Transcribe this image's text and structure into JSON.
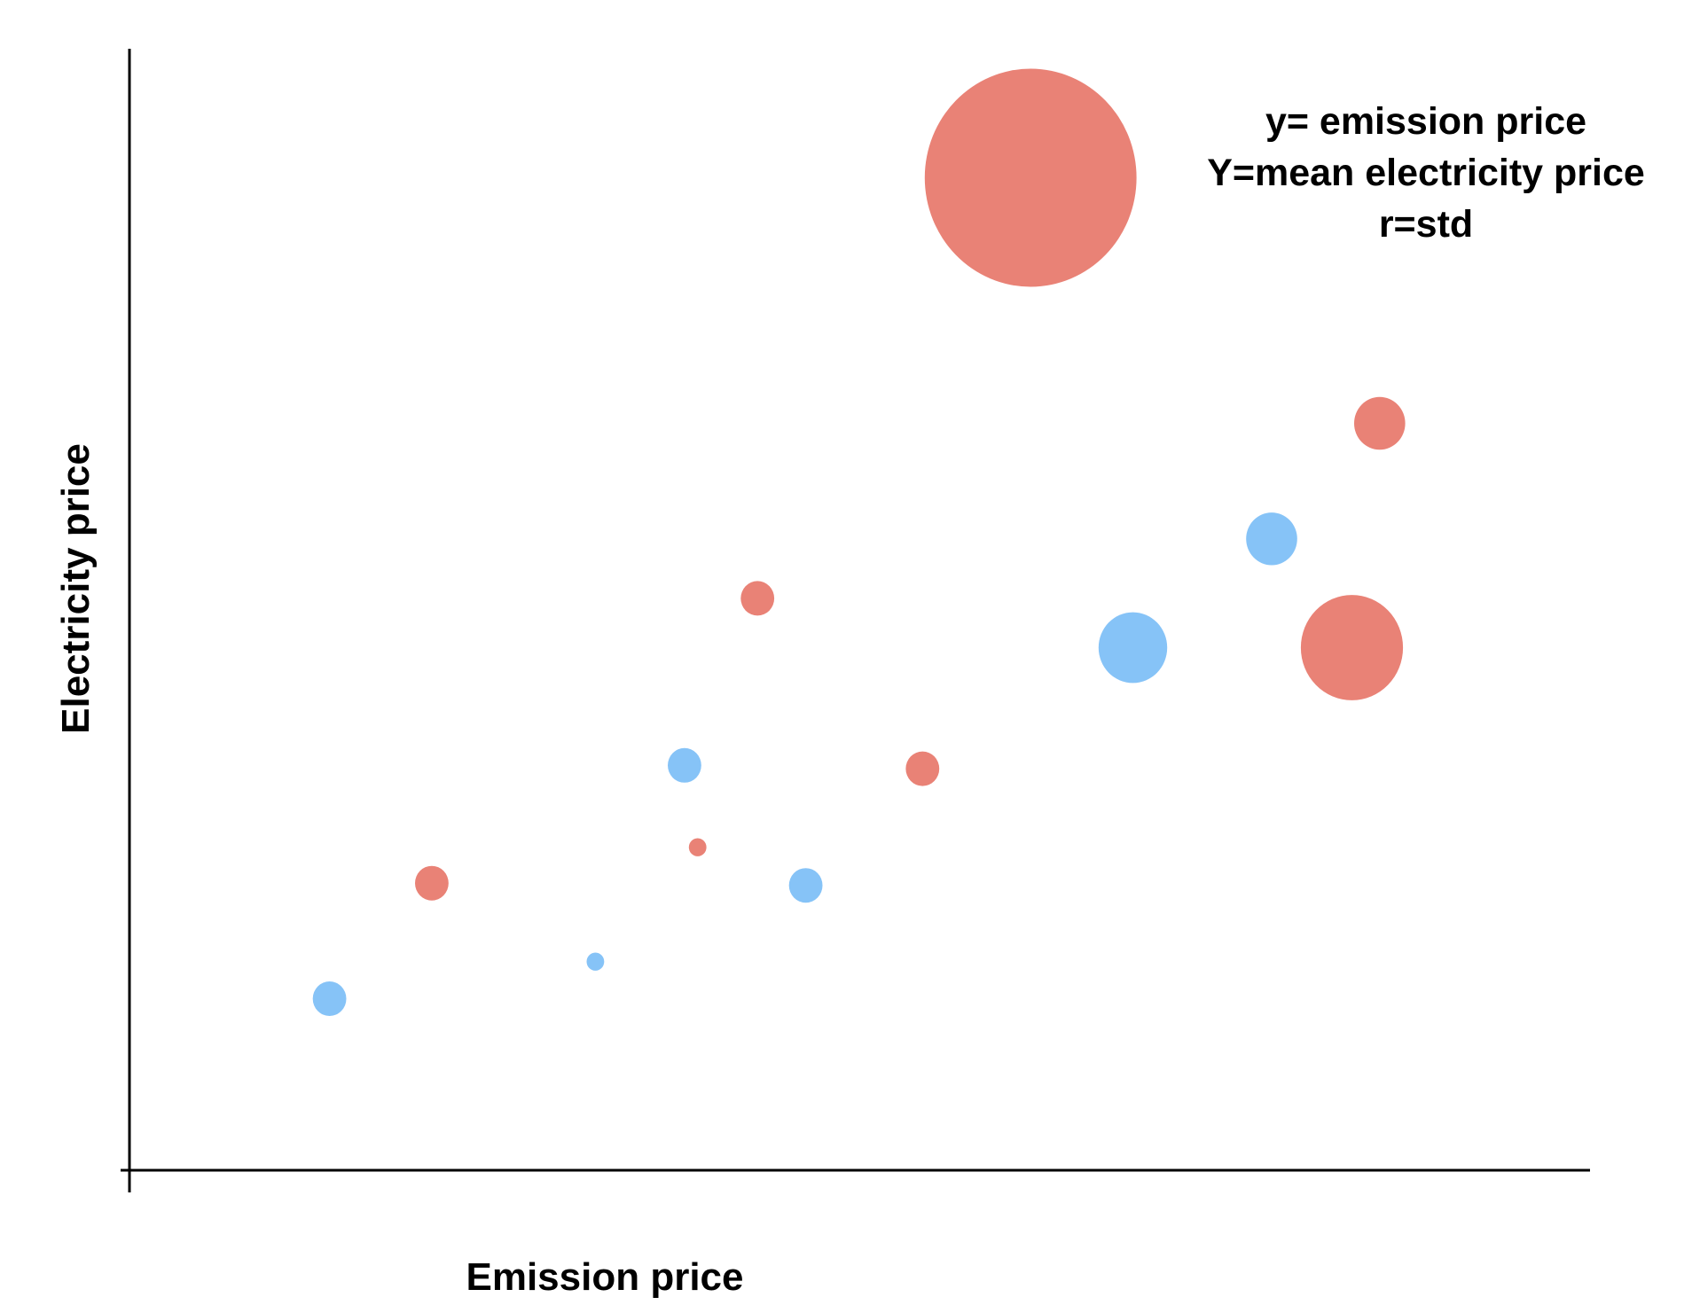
{
  "chart_data": {
    "type": "scatter",
    "subtype": "bubble",
    "title": "",
    "xlabel": "Emission price",
    "ylabel": "Electricity price",
    "xlim": [
      0,
      100
    ],
    "ylim": [
      0,
      100
    ],
    "grid": false,
    "ticks": false,
    "annotation": {
      "lines": [
        "y= emission price",
        "Y=mean electricity price",
        "r=std"
      ],
      "placement": "top-right"
    },
    "colors": {
      "red": "#E98276",
      "blue": "#86C3F7",
      "axis": "#000000"
    },
    "series": [
      {
        "color": "#E98276",
        "points": [
          {
            "x": 61.7,
            "y": 88.5,
            "r": 14.5
          },
          {
            "x": 85.6,
            "y": 66.6,
            "r": 3.5
          },
          {
            "x": 43.0,
            "y": 51.0,
            "r": 2.3
          },
          {
            "x": 54.3,
            "y": 35.8,
            "r": 2.3
          },
          {
            "x": 83.7,
            "y": 46.6,
            "r": 7.0
          },
          {
            "x": 20.7,
            "y": 25.6,
            "r": 2.3
          },
          {
            "x": 38.9,
            "y": 28.8,
            "r": 1.2
          }
        ]
      },
      {
        "color": "#86C3F7",
        "points": [
          {
            "x": 78.2,
            "y": 56.3,
            "r": 3.5
          },
          {
            "x": 68.7,
            "y": 46.6,
            "r": 4.7
          },
          {
            "x": 38.0,
            "y": 36.1,
            "r": 2.3
          },
          {
            "x": 46.3,
            "y": 25.4,
            "r": 2.3
          },
          {
            "x": 31.9,
            "y": 18.6,
            "r": 1.2
          },
          {
            "x": 13.7,
            "y": 15.3,
            "r": 2.3
          }
        ]
      }
    ]
  }
}
